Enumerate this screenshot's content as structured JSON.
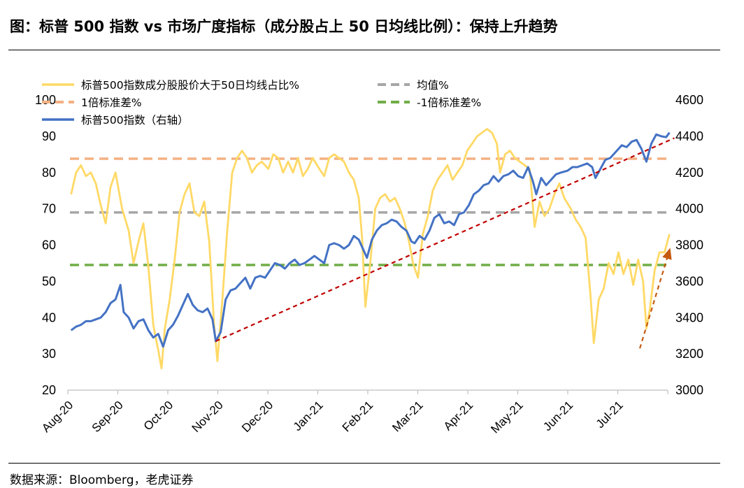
{
  "title": "图：标普 500 指数 vs  市场广度指标（成分股占上 50 日均线比例）：保持上升趋势",
  "source": "数据来源：Bloomberg，老虎证券",
  "chart_data": {
    "type": "line",
    "categories": [
      "Aug-20",
      "Sep-20",
      "Oct-20",
      "Nov-20",
      "Dec-20",
      "Jan-21",
      "Feb-21",
      "Mar-21",
      "Apr-21",
      "May-21",
      "Jun-21",
      "Jul-21"
    ],
    "ylim_left": [
      20,
      100
    ],
    "yticks_left": [
      "20",
      "30",
      "40",
      "50",
      "60",
      "70",
      "80",
      "90",
      "100"
    ],
    "ylim_right": [
      3000,
      4600
    ],
    "yticks_right": [
      "3000",
      "3200",
      "3400",
      "3600",
      "3800",
      "4000",
      "4200",
      "4400",
      "4600"
    ],
    "legend": {
      "breadth": "标普500指数成分股股价大于50日均线占比%",
      "mean": "均值%",
      "plus_sd": "1倍标准差%",
      "minus_sd": "-1倍标准差%",
      "spx": "标普500指数（右轴）"
    },
    "reference_lines": {
      "mean": 69,
      "plus_sd": 83.8,
      "minus_sd": 54.5
    },
    "breadth_series": [
      [
        "2020-08-03",
        74
      ],
      [
        "2020-08-06",
        80
      ],
      [
        "2020-08-09",
        82
      ],
      [
        "2020-08-12",
        79
      ],
      [
        "2020-08-15",
        80
      ],
      [
        "2020-08-18",
        77
      ],
      [
        "2020-08-21",
        71
      ],
      [
        "2020-08-24",
        66
      ],
      [
        "2020-08-27",
        76
      ],
      [
        "2020-08-30",
        80
      ],
      [
        "2020-09-03",
        70
      ],
      [
        "2020-09-07",
        64
      ],
      [
        "2020-09-10",
        55
      ],
      [
        "2020-09-13",
        61
      ],
      [
        "2020-09-16",
        66
      ],
      [
        "2020-09-19",
        54
      ],
      [
        "2020-09-22",
        38
      ],
      [
        "2020-09-25",
        31
      ],
      [
        "2020-09-27",
        26
      ],
      [
        "2020-09-29",
        37
      ],
      [
        "2020-10-02",
        45
      ],
      [
        "2020-10-05",
        56
      ],
      [
        "2020-10-08",
        69
      ],
      [
        "2020-10-11",
        74
      ],
      [
        "2020-10-14",
        77
      ],
      [
        "2020-10-17",
        69
      ],
      [
        "2020-10-20",
        68
      ],
      [
        "2020-10-23",
        72
      ],
      [
        "2020-10-26",
        61
      ],
      [
        "2020-10-29",
        38
      ],
      [
        "2020-10-31",
        28
      ],
      [
        "2020-11-03",
        45
      ],
      [
        "2020-11-06",
        64
      ],
      [
        "2020-11-09",
        80
      ],
      [
        "2020-11-12",
        84
      ],
      [
        "2020-11-15",
        86
      ],
      [
        "2020-11-18",
        84
      ],
      [
        "2020-11-21",
        80
      ],
      [
        "2020-11-24",
        82
      ],
      [
        "2020-11-27",
        83
      ],
      [
        "2020-12-01",
        81
      ],
      [
        "2020-12-04",
        85
      ],
      [
        "2020-12-07",
        84
      ],
      [
        "2020-12-10",
        80
      ],
      [
        "2020-12-13",
        83
      ],
      [
        "2020-12-16",
        80
      ],
      [
        "2020-12-19",
        84
      ],
      [
        "2020-12-22",
        79
      ],
      [
        "2020-12-25",
        81
      ],
      [
        "2020-12-28",
        84
      ],
      [
        "2021-01-01",
        81
      ],
      [
        "2021-01-04",
        79
      ],
      [
        "2021-01-07",
        84
      ],
      [
        "2021-01-10",
        85
      ],
      [
        "2021-01-13",
        84
      ],
      [
        "2021-01-16",
        83
      ],
      [
        "2021-01-19",
        80
      ],
      [
        "2021-01-22",
        78
      ],
      [
        "2021-01-25",
        73
      ],
      [
        "2021-01-27",
        62
      ],
      [
        "2021-01-29",
        43
      ],
      [
        "2021-02-01",
        55
      ],
      [
        "2021-02-04",
        70
      ],
      [
        "2021-02-07",
        73
      ],
      [
        "2021-02-10",
        74
      ],
      [
        "2021-02-13",
        72
      ],
      [
        "2021-02-16",
        73
      ],
      [
        "2021-02-19",
        70
      ],
      [
        "2021-02-22",
        66
      ],
      [
        "2021-02-25",
        60
      ],
      [
        "2021-02-27",
        55
      ],
      [
        "2021-03-02",
        51
      ],
      [
        "2021-03-05",
        63
      ],
      [
        "2021-03-08",
        68
      ],
      [
        "2021-03-11",
        75
      ],
      [
        "2021-03-14",
        78
      ],
      [
        "2021-03-17",
        80
      ],
      [
        "2021-03-20",
        82
      ],
      [
        "2021-03-23",
        78
      ],
      [
        "2021-03-26",
        80
      ],
      [
        "2021-03-29",
        82
      ],
      [
        "2021-04-01",
        86
      ],
      [
        "2021-04-04",
        88
      ],
      [
        "2021-04-07",
        90
      ],
      [
        "2021-04-10",
        91
      ],
      [
        "2021-04-13",
        92
      ],
      [
        "2021-04-16",
        91
      ],
      [
        "2021-04-19",
        88
      ],
      [
        "2021-04-21",
        80
      ],
      [
        "2021-04-24",
        85
      ],
      [
        "2021-04-27",
        86
      ],
      [
        "2021-04-30",
        84
      ],
      [
        "2021-05-03",
        83
      ],
      [
        "2021-05-06",
        82
      ],
      [
        "2021-05-09",
        81
      ],
      [
        "2021-05-12",
        65
      ],
      [
        "2021-05-15",
        72
      ],
      [
        "2021-05-18",
        68
      ],
      [
        "2021-05-21",
        70
      ],
      [
        "2021-05-24",
        74
      ],
      [
        "2021-05-27",
        77
      ],
      [
        "2021-05-30",
        73
      ],
      [
        "2021-06-03",
        70
      ],
      [
        "2021-06-06",
        67
      ],
      [
        "2021-06-09",
        65
      ],
      [
        "2021-06-12",
        62
      ],
      [
        "2021-06-15",
        46
      ],
      [
        "2021-06-17",
        33
      ],
      [
        "2021-06-20",
        45
      ],
      [
        "2021-06-23",
        48
      ],
      [
        "2021-06-26",
        55
      ],
      [
        "2021-06-29",
        52
      ],
      [
        "2021-07-02",
        58
      ],
      [
        "2021-07-05",
        52
      ],
      [
        "2021-07-08",
        56
      ],
      [
        "2021-07-11",
        49
      ],
      [
        "2021-07-14",
        56
      ],
      [
        "2021-07-17",
        50
      ],
      [
        "2021-07-19",
        37
      ],
      [
        "2021-07-21",
        42
      ],
      [
        "2021-07-24",
        53
      ],
      [
        "2021-07-27",
        58
      ],
      [
        "2021-07-30",
        58
      ],
      [
        "2021-08-02",
        63
      ]
    ],
    "spx_series": [
      [
        "2020-08-03",
        3330
      ],
      [
        "2020-08-06",
        3350
      ],
      [
        "2020-08-09",
        3360
      ],
      [
        "2020-08-12",
        3380
      ],
      [
        "2020-08-15",
        3380
      ],
      [
        "2020-08-18",
        3390
      ],
      [
        "2020-08-21",
        3400
      ],
      [
        "2020-08-24",
        3430
      ],
      [
        "2020-08-27",
        3480
      ],
      [
        "2020-08-30",
        3500
      ],
      [
        "2020-09-02",
        3580
      ],
      [
        "2020-09-04",
        3430
      ],
      [
        "2020-09-07",
        3400
      ],
      [
        "2020-09-10",
        3340
      ],
      [
        "2020-09-13",
        3380
      ],
      [
        "2020-09-16",
        3390
      ],
      [
        "2020-09-19",
        3330
      ],
      [
        "2020-09-22",
        3290
      ],
      [
        "2020-09-25",
        3310
      ],
      [
        "2020-09-28",
        3240
      ],
      [
        "2020-10-01",
        3330
      ],
      [
        "2020-10-04",
        3360
      ],
      [
        "2020-10-07",
        3410
      ],
      [
        "2020-10-10",
        3470
      ],
      [
        "2020-10-13",
        3530
      ],
      [
        "2020-10-16",
        3470
      ],
      [
        "2020-10-19",
        3440
      ],
      [
        "2020-10-22",
        3430
      ],
      [
        "2020-10-25",
        3450
      ],
      [
        "2020-10-28",
        3390
      ],
      [
        "2020-10-30",
        3270
      ],
      [
        "2020-11-02",
        3320
      ],
      [
        "2020-11-05",
        3500
      ],
      [
        "2020-11-08",
        3550
      ],
      [
        "2020-11-11",
        3560
      ],
      [
        "2020-11-14",
        3590
      ],
      [
        "2020-11-17",
        3620
      ],
      [
        "2020-11-20",
        3560
      ],
      [
        "2020-11-23",
        3620
      ],
      [
        "2020-11-26",
        3630
      ],
      [
        "2020-11-29",
        3620
      ],
      [
        "2020-12-02",
        3660
      ],
      [
        "2020-12-05",
        3700
      ],
      [
        "2020-12-08",
        3690
      ],
      [
        "2020-12-11",
        3670
      ],
      [
        "2020-12-14",
        3700
      ],
      [
        "2020-12-17",
        3720
      ],
      [
        "2020-12-20",
        3690
      ],
      [
        "2020-12-23",
        3700
      ],
      [
        "2020-12-26",
        3720
      ],
      [
        "2020-12-29",
        3740
      ],
      [
        "2021-01-01",
        3720
      ],
      [
        "2021-01-04",
        3700
      ],
      [
        "2021-01-07",
        3800
      ],
      [
        "2021-01-10",
        3810
      ],
      [
        "2021-01-13",
        3800
      ],
      [
        "2021-01-16",
        3780
      ],
      [
        "2021-01-19",
        3800
      ],
      [
        "2021-01-22",
        3850
      ],
      [
        "2021-01-25",
        3830
      ],
      [
        "2021-01-28",
        3770
      ],
      [
        "2021-01-30",
        3730
      ],
      [
        "2021-02-02",
        3830
      ],
      [
        "2021-02-05",
        3880
      ],
      [
        "2021-02-08",
        3910
      ],
      [
        "2021-02-11",
        3920
      ],
      [
        "2021-02-14",
        3940
      ],
      [
        "2021-02-17",
        3930
      ],
      [
        "2021-02-20",
        3900
      ],
      [
        "2021-02-23",
        3880
      ],
      [
        "2021-02-26",
        3820
      ],
      [
        "2021-02-28",
        3810
      ],
      [
        "2021-03-03",
        3850
      ],
      [
        "2021-03-06",
        3830
      ],
      [
        "2021-03-09",
        3880
      ],
      [
        "2021-03-12",
        3950
      ],
      [
        "2021-03-15",
        3970
      ],
      [
        "2021-03-18",
        3920
      ],
      [
        "2021-03-21",
        3930
      ],
      [
        "2021-03-24",
        3910
      ],
      [
        "2021-03-27",
        3970
      ],
      [
        "2021-03-30",
        3980
      ],
      [
        "2021-04-02",
        4020
      ],
      [
        "2021-04-05",
        4080
      ],
      [
        "2021-04-08",
        4100
      ],
      [
        "2021-04-11",
        4130
      ],
      [
        "2021-04-14",
        4140
      ],
      [
        "2021-04-17",
        4180
      ],
      [
        "2021-04-20",
        4150
      ],
      [
        "2021-04-23",
        4180
      ],
      [
        "2021-04-26",
        4190
      ],
      [
        "2021-04-29",
        4210
      ],
      [
        "2021-05-02",
        4180
      ],
      [
        "2021-05-05",
        4170
      ],
      [
        "2021-05-08",
        4230
      ],
      [
        "2021-05-11",
        4150
      ],
      [
        "2021-05-13",
        4080
      ],
      [
        "2021-05-16",
        4170
      ],
      [
        "2021-05-19",
        4130
      ],
      [
        "2021-05-22",
        4160
      ],
      [
        "2021-05-25",
        4190
      ],
      [
        "2021-05-28",
        4200
      ],
      [
        "2021-06-01",
        4210
      ],
      [
        "2021-06-04",
        4230
      ],
      [
        "2021-06-07",
        4230
      ],
      [
        "2021-06-10",
        4240
      ],
      [
        "2021-06-13",
        4250
      ],
      [
        "2021-06-16",
        4230
      ],
      [
        "2021-06-18",
        4170
      ],
      [
        "2021-06-21",
        4220
      ],
      [
        "2021-06-24",
        4270
      ],
      [
        "2021-06-27",
        4280
      ],
      [
        "2021-07-01",
        4320
      ],
      [
        "2021-07-04",
        4350
      ],
      [
        "2021-07-07",
        4340
      ],
      [
        "2021-07-10",
        4370
      ],
      [
        "2021-07-13",
        4380
      ],
      [
        "2021-07-16",
        4330
      ],
      [
        "2021-07-19",
        4260
      ],
      [
        "2021-07-22",
        4360
      ],
      [
        "2021-07-25",
        4410
      ],
      [
        "2021-07-28",
        4400
      ],
      [
        "2021-07-31",
        4395
      ],
      [
        "2021-08-02",
        4420
      ]
    ],
    "trend_lines": [
      {
        "from": [
          "2020-10-30",
          3270
        ],
        "to": [
          "2021-08-05",
          4390
        ]
      },
      {
        "from": [
          "2021-07-15",
          3230
        ],
        "to": [
          "2021-08-02",
          3770
        ]
      }
    ],
    "colors": {
      "breadth": "#FFD966",
      "spx": "#4472C4",
      "mean": "#A6A6A6",
      "plus_sd": "#F4B183",
      "minus_sd": "#70AD47",
      "trend": "#C00000",
      "trend_short": "#C55A11"
    }
  }
}
